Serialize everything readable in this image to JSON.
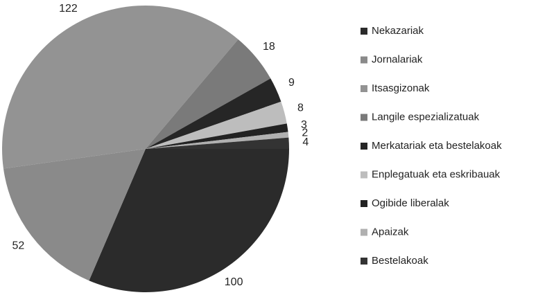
{
  "chart_data": {
    "type": "pie",
    "categories": [
      "Nekazariak",
      "Jornalariak",
      "Itsasgizonak",
      "Langile espezializatuak",
      "Merkatariak eta bestelakoak",
      "Enplegatuak eta eskribauak",
      "Ogibide liberalak",
      "Apaizak",
      "Bestelakoak"
    ],
    "values": [
      100,
      52,
      122,
      18,
      9,
      8,
      3,
      2,
      4
    ],
    "colors": [
      "#2b2b2b",
      "#8a8a8a",
      "#939393",
      "#7a7a7a",
      "#262626",
      "#bdbdbd",
      "#222222",
      "#b0b0b0",
      "#333333"
    ],
    "legend": "right"
  }
}
